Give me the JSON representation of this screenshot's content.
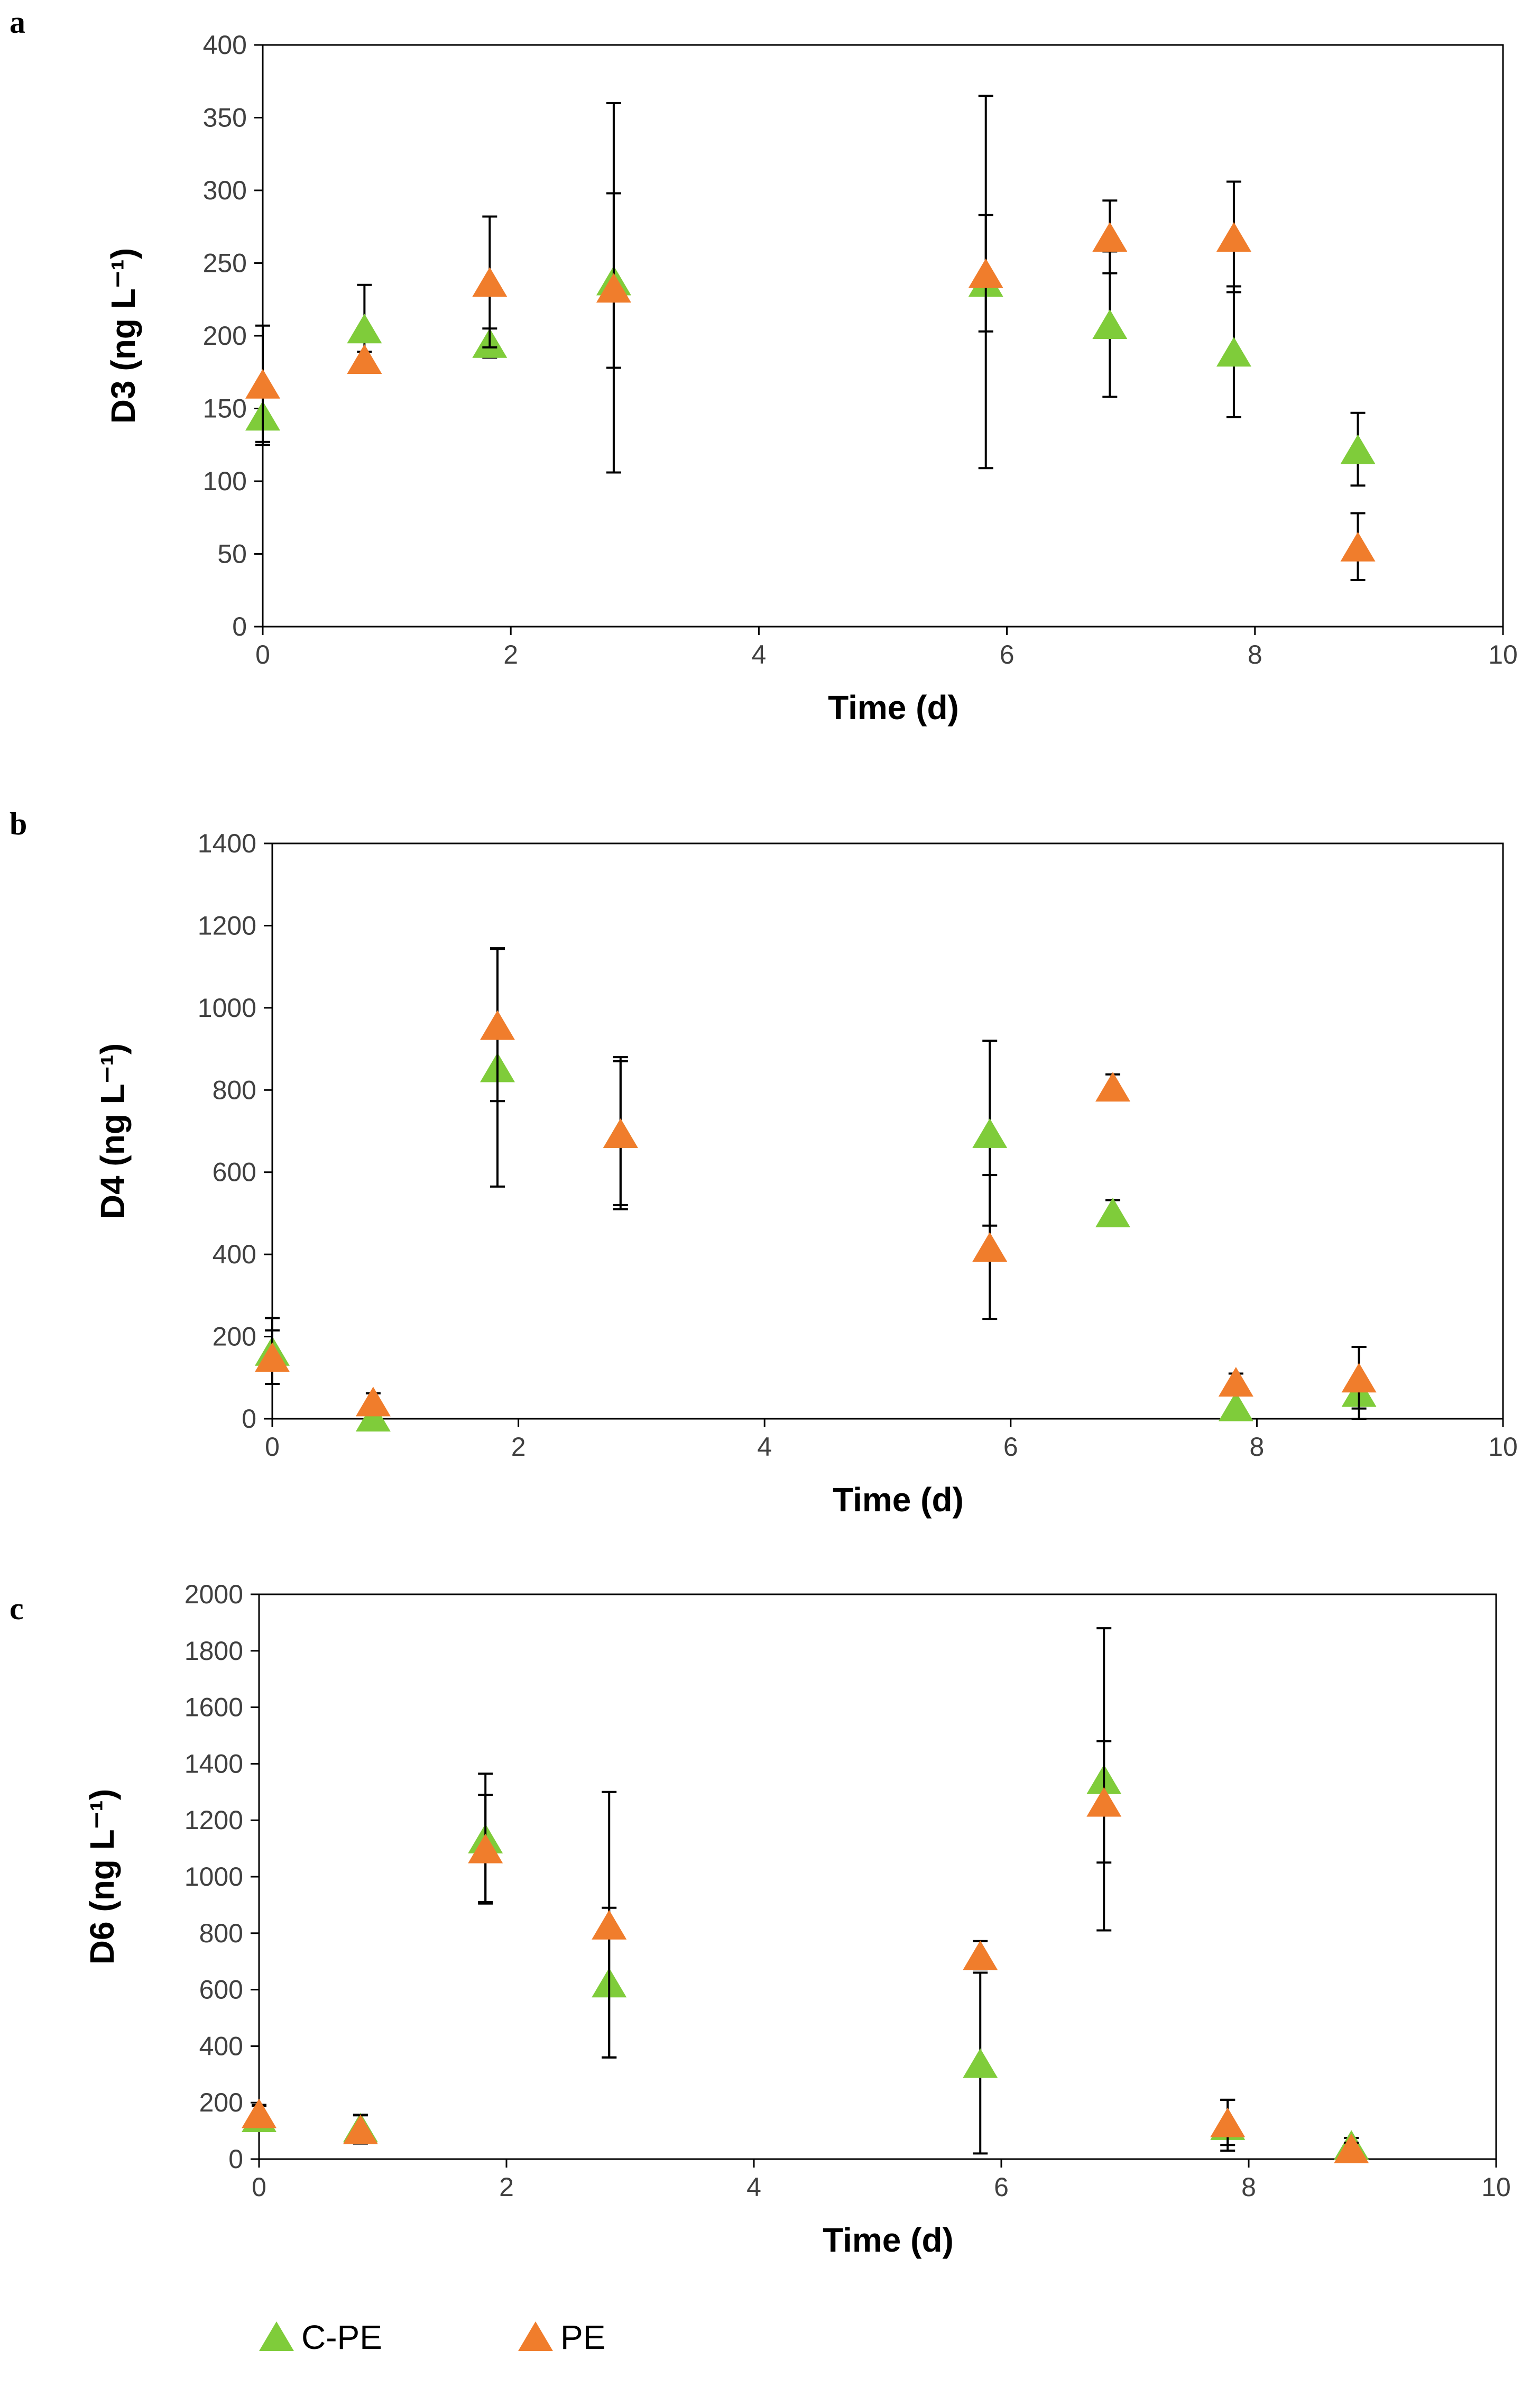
{
  "colors": {
    "cpe": "#7fcc3a",
    "pe": "#f07d2c",
    "axis": "#000000",
    "error": "#000000"
  },
  "legend": [
    {
      "name": "C-PE",
      "color_key": "cpe"
    },
    {
      "name": "PE",
      "color_key": "pe"
    }
  ],
  "chart_data": [
    {
      "panel": "a",
      "type": "scatter",
      "xlabel": "Time (d)",
      "ylabel": "D3 (ng L⁻¹)",
      "xlim": [
        0,
        10
      ],
      "ylim": [
        0,
        400
      ],
      "xticks": [
        "0",
        "2",
        "4",
        "6",
        "8",
        "10"
      ],
      "yticks": [
        "0",
        "50",
        "100",
        "150",
        "200",
        "250",
        "300",
        "350",
        "400"
      ],
      "series": [
        {
          "name": "C-PE",
          "color_key": "cpe",
          "x": [
            0,
            0.82,
            1.83,
            2.83,
            5.83,
            6.83,
            7.83,
            8.83
          ],
          "y": [
            145,
            205,
            195,
            238,
            237,
            208,
            189,
            122
          ],
          "err": [
            20,
            30,
            10,
            60,
            128,
            50,
            45,
            25
          ]
        },
        {
          "name": "PE",
          "color_key": "pe",
          "x": [
            0,
            0.82,
            1.83,
            2.83,
            5.83,
            6.83,
            7.83,
            8.83
          ],
          "y": [
            167,
            184,
            237,
            233,
            243,
            268,
            268,
            55
          ],
          "err": [
            40,
            5,
            45,
            127,
            40,
            25,
            38,
            23
          ]
        }
      ]
    },
    {
      "panel": "b",
      "type": "scatter",
      "xlabel": "Time (d)",
      "ylabel": "D4 (ng L⁻¹)",
      "xlim": [
        0,
        10
      ],
      "ylim": [
        0,
        1400
      ],
      "xticks": [
        "0",
        "2",
        "4",
        "6",
        "8",
        "10"
      ],
      "yticks": [
        "0",
        "200",
        "400",
        "600",
        "800",
        "1000",
        "1200",
        "1400"
      ],
      "series": [
        {
          "name": "C-PE",
          "color_key": "cpe",
          "x": [
            0,
            0.82,
            1.83,
            2.83,
            5.83,
            6.83,
            7.83,
            8.83
          ],
          "y": [
            165,
            5,
            855,
            695,
            695,
            502,
            30,
            65
          ],
          "err": [
            80,
            10,
            290,
            175,
            225,
            30,
            40,
            110
          ]
        },
        {
          "name": "PE",
          "color_key": "pe",
          "x": [
            0,
            0.82,
            1.83,
            2.83,
            5.83,
            6.83,
            7.83,
            8.83
          ],
          "y": [
            150,
            42,
            958,
            695,
            418,
            808,
            90,
            100
          ],
          "err": [
            65,
            20,
            185,
            185,
            175,
            30,
            20,
            75
          ]
        }
      ]
    },
    {
      "panel": "c",
      "type": "scatter",
      "xlabel": "Time (d)",
      "ylabel": "D6 (ng L⁻¹)",
      "xlim": [
        0,
        10
      ],
      "ylim": [
        0,
        2000
      ],
      "xticks": [
        "0",
        "2",
        "4",
        "6",
        "8",
        "10"
      ],
      "yticks": [
        "0",
        "200",
        "400",
        "600",
        "800",
        "1000",
        "1200",
        "1400",
        "1600",
        "1800",
        "2000"
      ],
      "series": [
        {
          "name": "C-PE",
          "color_key": "cpe",
          "x": [
            0,
            0.82,
            1.83,
            2.83,
            5.83,
            6.83,
            7.83,
            8.83
          ],
          "y": [
            148,
            112,
            1135,
            625,
            340,
            1345,
            120,
            50
          ],
          "err": [
            40,
            45,
            230,
            265,
            320,
            535,
            90,
            25
          ]
        },
        {
          "name": "PE",
          "color_key": "pe",
          "x": [
            0,
            0.82,
            1.83,
            2.83,
            5.83,
            6.83,
            7.83,
            8.83
          ],
          "y": [
            162,
            105,
            1100,
            830,
            722,
            1265,
            130,
            38
          ],
          "err": [
            30,
            50,
            190,
            470,
            50,
            215,
            80,
            20
          ]
        }
      ]
    }
  ]
}
